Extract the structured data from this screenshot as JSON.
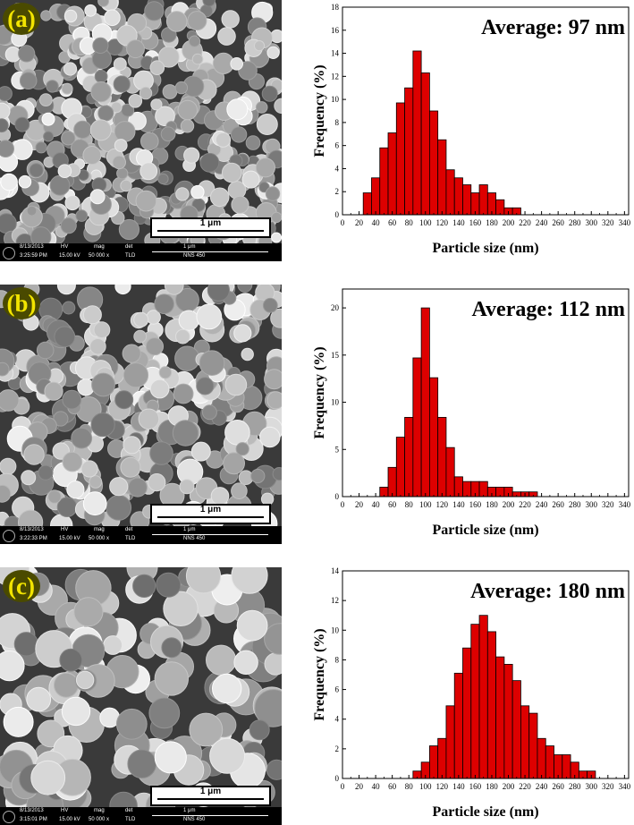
{
  "panels": [
    {
      "label": "(a)",
      "scale_bar": "1 μm",
      "info": {
        "date": "8/13/2013",
        "time": "3:25:59 PM",
        "hv_label": "HV",
        "hv": "15.00 kV",
        "mag_label": "mag",
        "mag": "50 000 x",
        "det_label": "det",
        "det": "TLD",
        "scale": "1 μm",
        "instrument": "NNS 450"
      }
    },
    {
      "label": "(b)",
      "scale_bar": "1 μm",
      "info": {
        "date": "8/13/2013",
        "time": "3:22:33 PM",
        "hv_label": "HV",
        "hv": "15.00 kV",
        "mag_label": "mag",
        "mag": "50 000 x",
        "det_label": "det",
        "det": "TLD",
        "scale": "1 μm",
        "instrument": "NNS 450"
      }
    },
    {
      "label": "(c)",
      "scale_bar": "1 μm",
      "info": {
        "date": "8/13/2013",
        "time": "3:15:01 PM",
        "hv_label": "HV",
        "hv": "15.00 kV",
        "mag_label": "mag",
        "mag": "50 000 x",
        "det_label": "det",
        "det": "TLD",
        "scale": "1 μm",
        "instrument": "NNS 450"
      }
    }
  ],
  "chart_data": [
    {
      "type": "bar",
      "annotation": "Average: 97 nm",
      "xlabel": "Particle size (nm)",
      "ylabel": "Frequency (%)",
      "xlim": [
        0,
        345
      ],
      "ylim": [
        0,
        18
      ],
      "xticks": [
        0,
        20,
        40,
        60,
        80,
        100,
        120,
        140,
        160,
        180,
        200,
        220,
        240,
        260,
        280,
        300,
        320,
        340
      ],
      "yticks": [
        0,
        2,
        4,
        6,
        8,
        10,
        12,
        14,
        16,
        18
      ],
      "bin_width": 10,
      "bar_color": "#dd0000",
      "bins": [
        {
          "x": 30,
          "y": 1.9
        },
        {
          "x": 40,
          "y": 3.2
        },
        {
          "x": 50,
          "y": 5.8
        },
        {
          "x": 60,
          "y": 7.1
        },
        {
          "x": 70,
          "y": 9.7
        },
        {
          "x": 80,
          "y": 11.0
        },
        {
          "x": 90,
          "y": 14.2
        },
        {
          "x": 100,
          "y": 12.3
        },
        {
          "x": 110,
          "y": 9.0
        },
        {
          "x": 120,
          "y": 6.5
        },
        {
          "x": 130,
          "y": 3.9
        },
        {
          "x": 140,
          "y": 3.2
        },
        {
          "x": 150,
          "y": 2.6
        },
        {
          "x": 160,
          "y": 1.9
        },
        {
          "x": 170,
          "y": 2.6
        },
        {
          "x": 180,
          "y": 1.9
        },
        {
          "x": 190,
          "y": 1.3
        },
        {
          "x": 200,
          "y": 0.6
        },
        {
          "x": 210,
          "y": 0.6
        }
      ]
    },
    {
      "type": "bar",
      "annotation": "Average: 112 nm",
      "xlabel": "Particle size (nm)",
      "ylabel": "Frequency (%)",
      "xlim": [
        0,
        345
      ],
      "ylim": [
        0,
        22
      ],
      "xticks": [
        0,
        20,
        40,
        60,
        80,
        100,
        120,
        140,
        160,
        180,
        200,
        220,
        240,
        260,
        280,
        300,
        320,
        340
      ],
      "yticks": [
        0,
        5,
        10,
        15,
        20
      ],
      "bin_width": 10,
      "bar_color": "#dd0000",
      "bins": [
        {
          "x": 50,
          "y": 1.0
        },
        {
          "x": 60,
          "y": 3.1
        },
        {
          "x": 70,
          "y": 6.3
        },
        {
          "x": 80,
          "y": 8.4
        },
        {
          "x": 90,
          "y": 14.7
        },
        {
          "x": 100,
          "y": 20.0
        },
        {
          "x": 110,
          "y": 12.6
        },
        {
          "x": 120,
          "y": 8.4
        },
        {
          "x": 130,
          "y": 5.2
        },
        {
          "x": 140,
          "y": 2.1
        },
        {
          "x": 150,
          "y": 1.6
        },
        {
          "x": 160,
          "y": 1.6
        },
        {
          "x": 170,
          "y": 1.6
        },
        {
          "x": 180,
          "y": 1.0
        },
        {
          "x": 190,
          "y": 1.0
        },
        {
          "x": 200,
          "y": 1.0
        },
        {
          "x": 210,
          "y": 0.5
        },
        {
          "x": 220,
          "y": 0.5
        },
        {
          "x": 230,
          "y": 0.5
        }
      ]
    },
    {
      "type": "bar",
      "annotation": "Average: 180 nm",
      "xlabel": "Particle size (nm)",
      "ylabel": "Frequency (%)",
      "xlim": [
        0,
        345
      ],
      "ylim": [
        0,
        14
      ],
      "xticks": [
        0,
        20,
        40,
        60,
        80,
        100,
        120,
        140,
        160,
        180,
        200,
        220,
        240,
        260,
        280,
        300,
        320,
        340
      ],
      "yticks": [
        0,
        2,
        4,
        6,
        8,
        10,
        12,
        14
      ],
      "bin_width": 10,
      "bar_color": "#dd0000",
      "bins": [
        {
          "x": 90,
          "y": 0.5
        },
        {
          "x": 100,
          "y": 1.1
        },
        {
          "x": 110,
          "y": 2.2
        },
        {
          "x": 120,
          "y": 2.7
        },
        {
          "x": 130,
          "y": 4.9
        },
        {
          "x": 140,
          "y": 7.1
        },
        {
          "x": 150,
          "y": 8.8
        },
        {
          "x": 160,
          "y": 10.4
        },
        {
          "x": 170,
          "y": 11.0
        },
        {
          "x": 180,
          "y": 9.9
        },
        {
          "x": 190,
          "y": 8.2
        },
        {
          "x": 200,
          "y": 7.7
        },
        {
          "x": 210,
          "y": 6.6
        },
        {
          "x": 220,
          "y": 4.9
        },
        {
          "x": 230,
          "y": 4.4
        },
        {
          "x": 240,
          "y": 2.7
        },
        {
          "x": 250,
          "y": 2.2
        },
        {
          "x": 260,
          "y": 1.6
        },
        {
          "x": 270,
          "y": 1.6
        },
        {
          "x": 280,
          "y": 1.1
        },
        {
          "x": 290,
          "y": 0.5
        },
        {
          "x": 300,
          "y": 0.5
        }
      ]
    }
  ]
}
